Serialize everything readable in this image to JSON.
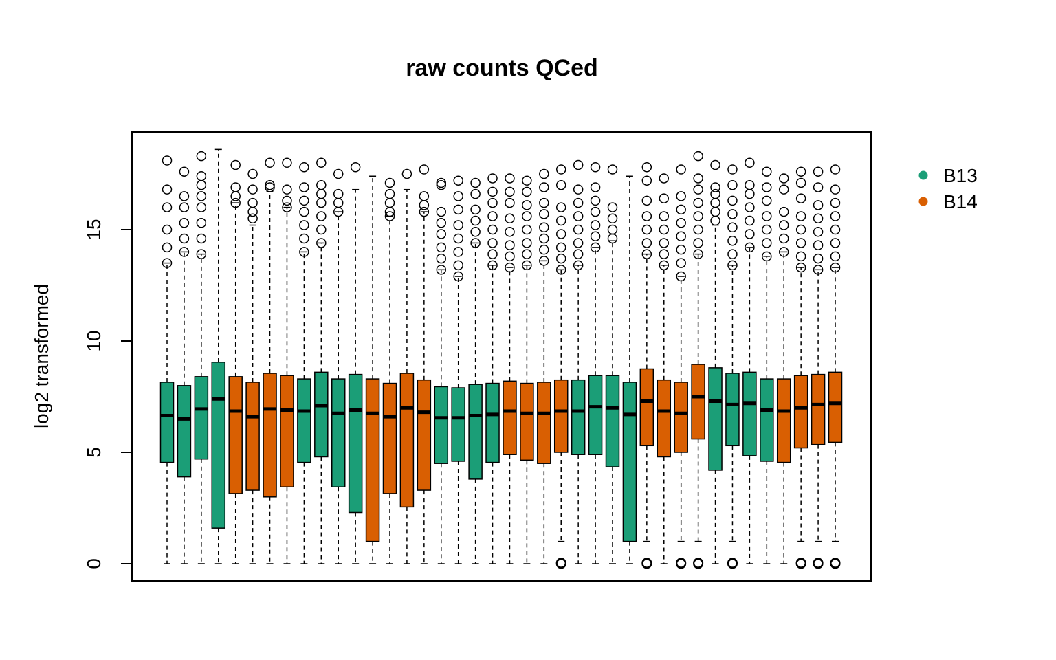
{
  "chart_data": {
    "type": "boxplot",
    "title": "raw counts QCed",
    "xlabel": "",
    "ylabel": "log2 transformed",
    "ylim": [
      -0.8,
      19
    ],
    "yticks": [
      0,
      5,
      10,
      15
    ],
    "ytick_labels": [
      "0",
      "5",
      "10",
      "15"
    ],
    "grid": false,
    "legend": {
      "placement": "right-top",
      "entries": [
        {
          "name": "B13",
          "color": "#1b9e77"
        },
        {
          "name": "B14",
          "color": "#d95f02"
        }
      ]
    },
    "series_colors": {
      "B13": "#1b9e77",
      "B14": "#d95f02"
    },
    "boxes": [
      {
        "group": "B13",
        "lower_whisker": 0,
        "q1": 4.55,
        "median": 6.65,
        "q3": 8.15,
        "upper_whisker": 13.5,
        "outliers_low": [],
        "outliers_high": [
          13.5,
          14.2,
          15.0,
          16.0,
          16.8,
          18.1
        ]
      },
      {
        "group": "B13",
        "lower_whisker": 0,
        "q1": 3.9,
        "median": 6.5,
        "q3": 8.0,
        "upper_whisker": 14.0,
        "outliers_low": [],
        "outliers_high": [
          14.0,
          14.6,
          15.3,
          16.0,
          16.5,
          17.6
        ]
      },
      {
        "group": "B13",
        "lower_whisker": 0,
        "q1": 4.7,
        "median": 6.95,
        "q3": 8.4,
        "upper_whisker": 13.9,
        "outliers_low": [],
        "outliers_high": [
          13.9,
          14.6,
          15.3,
          16.0,
          16.5,
          17.0,
          17.4,
          18.3
        ]
      },
      {
        "group": "B13",
        "lower_whisker": 0,
        "q1": 1.6,
        "median": 7.4,
        "q3": 9.05,
        "upper_whisker": 18.6,
        "outliers_low": [],
        "outliers_high": []
      },
      {
        "group": "B14",
        "lower_whisker": 0,
        "q1": 3.15,
        "median": 6.85,
        "q3": 8.4,
        "upper_whisker": 16.2,
        "outliers_low": [],
        "outliers_high": [
          16.2,
          16.5,
          16.9,
          17.9
        ]
      },
      {
        "group": "B14",
        "lower_whisker": 0,
        "q1": 3.3,
        "median": 6.6,
        "q3": 8.15,
        "upper_whisker": 15.2,
        "outliers_low": [],
        "outliers_high": [
          15.5,
          15.8,
          16.2,
          16.8,
          17.5
        ]
      },
      {
        "group": "B14",
        "lower_whisker": 0,
        "q1": 3.0,
        "median": 6.95,
        "q3": 8.55,
        "upper_whisker": 16.7,
        "outliers_low": [],
        "outliers_high": [
          16.9,
          17.0,
          18.0
        ]
      },
      {
        "group": "B14",
        "lower_whisker": 0,
        "q1": 3.45,
        "median": 6.9,
        "q3": 8.45,
        "upper_whisker": 16.0,
        "outliers_low": [],
        "outliers_high": [
          16.0,
          16.3,
          16.8,
          18.0
        ]
      },
      {
        "group": "B13",
        "lower_whisker": 0,
        "q1": 4.55,
        "median": 6.85,
        "q3": 8.3,
        "upper_whisker": 14.0,
        "outliers_low": [],
        "outliers_high": [
          14.0,
          14.6,
          15.2,
          15.8,
          16.3,
          16.9,
          17.8
        ]
      },
      {
        "group": "B13",
        "lower_whisker": 0,
        "q1": 4.8,
        "median": 7.1,
        "q3": 8.6,
        "upper_whisker": 14.4,
        "outliers_low": [],
        "outliers_high": [
          14.4,
          15.0,
          15.6,
          16.2,
          16.6,
          17.0,
          18.0
        ]
      },
      {
        "group": "B13",
        "lower_whisker": 0,
        "q1": 3.45,
        "median": 6.75,
        "q3": 8.3,
        "upper_whisker": 15.8,
        "outliers_low": [],
        "outliers_high": [
          15.8,
          16.2,
          16.6,
          17.5
        ]
      },
      {
        "group": "B13",
        "lower_whisker": 0,
        "q1": 2.3,
        "median": 6.9,
        "q3": 8.5,
        "upper_whisker": 16.8,
        "outliers_low": [],
        "outliers_high": [
          17.8
        ]
      },
      {
        "group": "B14",
        "lower_whisker": 0,
        "q1": 1.0,
        "median": 6.75,
        "q3": 8.3,
        "upper_whisker": 17.4,
        "outliers_low": [],
        "outliers_high": []
      },
      {
        "group": "B14",
        "lower_whisker": 0,
        "q1": 3.15,
        "median": 6.6,
        "q3": 8.1,
        "upper_whisker": 15.6,
        "outliers_low": [],
        "outliers_high": [
          15.6,
          15.8,
          16.2,
          16.6,
          17.1
        ]
      },
      {
        "group": "B14",
        "lower_whisker": 0,
        "q1": 2.55,
        "median": 7.0,
        "q3": 8.55,
        "upper_whisker": 16.8,
        "outliers_low": [],
        "outliers_high": [
          17.5
        ]
      },
      {
        "group": "B14",
        "lower_whisker": 0,
        "q1": 3.3,
        "median": 6.8,
        "q3": 8.25,
        "upper_whisker": 15.8,
        "outliers_low": [],
        "outliers_high": [
          15.8,
          16.1,
          16.5,
          17.7
        ]
      },
      {
        "group": "B13",
        "lower_whisker": 0,
        "q1": 4.5,
        "median": 6.55,
        "q3": 7.95,
        "upper_whisker": 13.2,
        "outliers_low": [],
        "outliers_high": [
          13.2,
          13.7,
          14.2,
          14.8,
          15.3,
          15.8,
          17.0,
          17.1
        ]
      },
      {
        "group": "B13",
        "lower_whisker": 0,
        "q1": 4.6,
        "median": 6.55,
        "q3": 7.9,
        "upper_whisker": 12.9,
        "outliers_low": [],
        "outliers_high": [
          12.9,
          13.4,
          14.0,
          14.6,
          15.2,
          15.9,
          16.5,
          17.2
        ]
      },
      {
        "group": "B13",
        "lower_whisker": 0,
        "q1": 3.8,
        "median": 6.65,
        "q3": 8.05,
        "upper_whisker": 14.4,
        "outliers_low": [],
        "outliers_high": [
          14.4,
          14.9,
          15.4,
          15.9,
          16.6,
          17.1
        ]
      },
      {
        "group": "B13",
        "lower_whisker": 0,
        "q1": 4.55,
        "median": 6.7,
        "q3": 8.1,
        "upper_whisker": 13.4,
        "outliers_low": [],
        "outliers_high": [
          13.4,
          13.9,
          14.4,
          15.0,
          15.6,
          16.2,
          16.7,
          17.3
        ]
      },
      {
        "group": "B14",
        "lower_whisker": 0,
        "q1": 4.9,
        "median": 6.85,
        "q3": 8.2,
        "upper_whisker": 13.3,
        "outliers_low": [],
        "outliers_high": [
          13.3,
          13.8,
          14.3,
          14.9,
          15.5,
          16.2,
          16.7,
          17.3
        ]
      },
      {
        "group": "B14",
        "lower_whisker": 0,
        "q1": 4.65,
        "median": 6.75,
        "q3": 8.1,
        "upper_whisker": 13.4,
        "outliers_low": [],
        "outliers_high": [
          13.4,
          13.9,
          14.4,
          15.0,
          15.6,
          16.1,
          16.7,
          17.2
        ]
      },
      {
        "group": "B14",
        "lower_whisker": 0,
        "q1": 4.5,
        "median": 6.75,
        "q3": 8.15,
        "upper_whisker": 13.6,
        "outliers_low": [],
        "outliers_high": [
          13.6,
          14.1,
          14.6,
          15.1,
          15.7,
          16.2,
          16.9,
          17.5
        ]
      },
      {
        "group": "B14",
        "lower_whisker": 1.0,
        "q1": 5.0,
        "median": 6.85,
        "q3": 8.25,
        "upper_whisker": 13.2,
        "outliers_low": [
          0,
          0
        ],
        "outliers_high": [
          13.2,
          13.7,
          14.2,
          14.8,
          15.4,
          16.0,
          17.0,
          17.7
        ]
      },
      {
        "group": "B13",
        "lower_whisker": 0,
        "q1": 4.9,
        "median": 6.85,
        "q3": 8.25,
        "upper_whisker": 13.4,
        "outliers_low": [],
        "outliers_high": [
          13.4,
          13.9,
          14.4,
          15.0,
          15.6,
          16.2,
          16.8,
          17.9
        ]
      },
      {
        "group": "B13",
        "lower_whisker": 0,
        "q1": 4.9,
        "median": 7.05,
        "q3": 8.45,
        "upper_whisker": 14.2,
        "outliers_low": [],
        "outliers_high": [
          14.2,
          14.7,
          15.2,
          15.8,
          16.3,
          16.9,
          17.8
        ]
      },
      {
        "group": "B13",
        "lower_whisker": 0,
        "q1": 4.35,
        "median": 7.0,
        "q3": 8.45,
        "upper_whisker": 14.5,
        "outliers_low": [],
        "outliers_high": [
          14.6,
          15.0,
          15.5,
          16.0,
          17.7
        ]
      },
      {
        "group": "B13",
        "lower_whisker": 0,
        "q1": 1.0,
        "median": 6.7,
        "q3": 8.15,
        "upper_whisker": 17.4,
        "outliers_low": [],
        "outliers_high": []
      },
      {
        "group": "B14",
        "lower_whisker": 1.0,
        "q1": 5.3,
        "median": 7.3,
        "q3": 8.75,
        "upper_whisker": 13.9,
        "outliers_low": [
          0,
          0
        ],
        "outliers_high": [
          13.9,
          14.4,
          15.0,
          15.6,
          16.3,
          17.2,
          17.8
        ]
      },
      {
        "group": "B14",
        "lower_whisker": 0,
        "q1": 4.8,
        "median": 6.85,
        "q3": 8.25,
        "upper_whisker": 13.4,
        "outliers_low": [],
        "outliers_high": [
          13.4,
          13.9,
          14.4,
          15.0,
          15.6,
          16.4,
          17.3
        ]
      },
      {
        "group": "B14",
        "lower_whisker": 1.0,
        "q1": 5.0,
        "median": 6.75,
        "q3": 8.15,
        "upper_whisker": 12.9,
        "outliers_low": [
          0,
          0
        ],
        "outliers_high": [
          12.9,
          13.5,
          14.1,
          14.7,
          15.3,
          15.9,
          16.5,
          17.7
        ]
      },
      {
        "group": "B14",
        "lower_whisker": 1.0,
        "q1": 5.6,
        "median": 7.5,
        "q3": 8.95,
        "upper_whisker": 13.9,
        "outliers_low": [
          0,
          0
        ],
        "outliers_high": [
          13.9,
          14.4,
          15.0,
          15.6,
          16.2,
          16.8,
          17.3,
          18.3
        ]
      },
      {
        "group": "B13",
        "lower_whisker": 0,
        "q1": 4.2,
        "median": 7.3,
        "q3": 8.8,
        "upper_whisker": 15.2,
        "outliers_low": [],
        "outliers_high": [
          15.4,
          15.8,
          16.2,
          16.6,
          16.9,
          17.9
        ]
      },
      {
        "group": "B13",
        "lower_whisker": 1.0,
        "q1": 5.3,
        "median": 7.15,
        "q3": 8.55,
        "upper_whisker": 13.4,
        "outliers_low": [
          0,
          0
        ],
        "outliers_high": [
          13.4,
          13.9,
          14.5,
          15.1,
          15.7,
          16.3,
          17.0,
          17.7
        ]
      },
      {
        "group": "B13",
        "lower_whisker": 0,
        "q1": 4.85,
        "median": 7.2,
        "q3": 8.6,
        "upper_whisker": 14.2,
        "outliers_low": [],
        "outliers_high": [
          14.2,
          14.8,
          15.4,
          16.0,
          16.6,
          17.0,
          18.0
        ]
      },
      {
        "group": "B13",
        "lower_whisker": 0,
        "q1": 4.6,
        "median": 6.9,
        "q3": 8.3,
        "upper_whisker": 13.8,
        "outliers_low": [],
        "outliers_high": [
          13.8,
          14.4,
          15.0,
          15.6,
          16.3,
          16.9,
          17.6
        ]
      },
      {
        "group": "B14",
        "lower_whisker": 0,
        "q1": 4.55,
        "median": 6.85,
        "q3": 8.3,
        "upper_whisker": 14.0,
        "outliers_low": [],
        "outliers_high": [
          14.0,
          14.6,
          15.2,
          15.8,
          16.8,
          17.3
        ]
      },
      {
        "group": "B14",
        "lower_whisker": 1.0,
        "q1": 5.2,
        "median": 7.0,
        "q3": 8.45,
        "upper_whisker": 13.3,
        "outliers_low": [
          0,
          0
        ],
        "outliers_high": [
          13.3,
          13.8,
          14.4,
          15.0,
          15.6,
          16.4,
          17.1,
          17.6
        ]
      },
      {
        "group": "B14",
        "lower_whisker": 1.0,
        "q1": 5.35,
        "median": 7.15,
        "q3": 8.5,
        "upper_whisker": 13.2,
        "outliers_low": [
          0,
          0
        ],
        "outliers_high": [
          13.2,
          13.7,
          14.3,
          14.9,
          15.5,
          16.1,
          16.9,
          17.6
        ]
      },
      {
        "group": "B14",
        "lower_whisker": 1.0,
        "q1": 5.45,
        "median": 7.2,
        "q3": 8.6,
        "upper_whisker": 13.3,
        "outliers_low": [
          0,
          0
        ],
        "outliers_high": [
          13.3,
          13.8,
          14.4,
          15.0,
          15.6,
          16.2,
          16.8,
          17.7
        ]
      }
    ]
  }
}
